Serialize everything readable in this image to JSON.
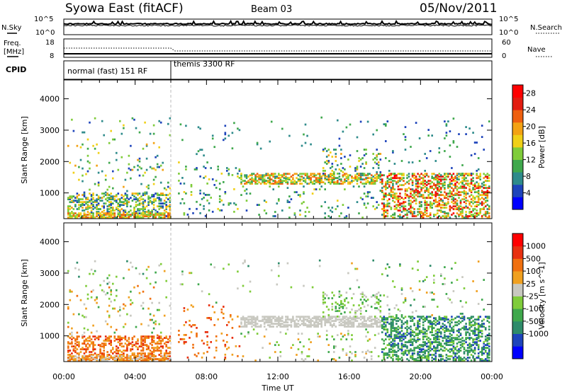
{
  "header": {
    "title": "Syowa East (fitACF)",
    "beam": "Beam 03",
    "date": "05/Nov/2011"
  },
  "noise_panel": {
    "left_label": "N.Sky",
    "right_label": "N.Search",
    "left_ticks": [
      "10^5",
      "10^0"
    ],
    "right_ticks": [
      "10^5",
      "10^0"
    ]
  },
  "freq_panel": {
    "left_label_1": "Freq.",
    "left_label_2": "[MHz]",
    "right_label": "Nave",
    "left_ticks": [
      "18",
      "8"
    ],
    "right_ticks": [
      "60",
      "0"
    ]
  },
  "cpid_panel": {
    "label": "CPID",
    "modes": [
      "normal (fast) 151 RF",
      "themis 3300 RF"
    ],
    "mode_switch_hour": 6.0
  },
  "time_axis": {
    "label": "Time UT",
    "tick_labels": [
      "00:00",
      "04:00",
      "08:00",
      "12:00",
      "16:00",
      "20:00",
      "00:00"
    ]
  },
  "chart_data": [
    {
      "type": "heatmap",
      "name": "power",
      "xlabel": "Time UT",
      "ylabel": "Slant Range [km]",
      "xlim_hours": [
        0,
        24
      ],
      "ylim_km": [
        180,
        4600
      ],
      "y_ticks": [
        1000,
        2000,
        3000,
        4000
      ],
      "colorbar": {
        "label": "Power [dB]",
        "ticks": [
          4,
          8,
          12,
          16,
          20,
          24,
          28
        ],
        "range": [
          0,
          30
        ],
        "colors": [
          "#0000ff",
          "#1e44bb",
          "#2e8b8b",
          "#3fa84c",
          "#7fcc3a",
          "#f0d018",
          "#f3a214",
          "#ee6010",
          "#e21c10",
          "#ff0000"
        ]
      },
      "bands": [
        {
          "t0": 0.2,
          "t1": 5.9,
          "r0": 200,
          "r1": 1000,
          "d": 0.42,
          "v": [
            4,
            20
          ]
        },
        {
          "t0": 0.2,
          "t1": 5.9,
          "r0": 1000,
          "r1": 2600,
          "d": 0.05,
          "v": [
            4,
            20
          ]
        },
        {
          "t0": 0.2,
          "t1": 5.9,
          "r0": 2600,
          "r1": 3400,
          "d": 0.025,
          "v": [
            4,
            16
          ]
        },
        {
          "t0": 0.2,
          "t1": 5.9,
          "r0": 200,
          "r1": 340,
          "d": 0.65,
          "v": [
            12,
            24
          ]
        },
        {
          "t0": 6.4,
          "t1": 9.8,
          "r0": 250,
          "r1": 2000,
          "d": 0.07,
          "v": [
            4,
            16
          ]
        },
        {
          "t0": 6.4,
          "t1": 9.8,
          "r0": 2000,
          "r1": 3300,
          "d": 0.02,
          "v": [
            4,
            12
          ]
        },
        {
          "t0": 9.9,
          "t1": 17.8,
          "r0": 1280,
          "r1": 1600,
          "d": 0.6,
          "v": [
            8,
            24
          ]
        },
        {
          "t0": 9.9,
          "t1": 17.8,
          "r0": 200,
          "r1": 1200,
          "d": 0.05,
          "v": [
            4,
            16
          ]
        },
        {
          "t0": 14.5,
          "t1": 17.8,
          "r0": 1600,
          "r1": 2400,
          "d": 0.15,
          "v": [
            4,
            20
          ]
        },
        {
          "t0": 17.8,
          "t1": 23.9,
          "r0": 200,
          "r1": 1600,
          "d": 0.45,
          "v": [
            8,
            28
          ]
        },
        {
          "t0": 17.8,
          "t1": 23.9,
          "r0": 1600,
          "r1": 3400,
          "d": 0.03,
          "v": [
            4,
            12
          ]
        },
        {
          "t0": 9.9,
          "t1": 17.8,
          "r0": 2400,
          "r1": 3400,
          "d": 0.015,
          "v": [
            4,
            12
          ]
        }
      ]
    },
    {
      "type": "heatmap",
      "name": "velocity",
      "xlabel": "Time UT",
      "ylabel": "Slant Range [km]",
      "xlim_hours": [
        0,
        24
      ],
      "ylim_km": [
        180,
        4600
      ],
      "y_ticks": [
        1000,
        2000,
        3000,
        4000
      ],
      "colorbar": {
        "label": "Velocity [m s^-1]",
        "ticks": [
          "1000",
          "500",
          "100",
          "25",
          "-25",
          "-100",
          "-500",
          "-1000"
        ],
        "colors": [
          "#0000ff",
          "#1e44bb",
          "#2e8b6a",
          "#3fa84c",
          "#7fcc3a",
          "#c8c8c0",
          "#f0a020",
          "#f07010",
          "#e83010",
          "#ff0000"
        ]
      },
      "bands": [
        {
          "t0": 0.2,
          "t1": 5.9,
          "r0": 200,
          "r1": 1000,
          "d": 0.42,
          "v": [
            6,
            8
          ]
        },
        {
          "t0": 0.2,
          "t1": 5.9,
          "r0": 1000,
          "r1": 2600,
          "d": 0.05,
          "v": [
            3,
            7
          ]
        },
        {
          "t0": 0.2,
          "t1": 5.9,
          "r0": 2600,
          "r1": 3400,
          "d": 0.025,
          "v": [
            2,
            6
          ]
        },
        {
          "t0": 0.2,
          "t1": 5.9,
          "r0": 200,
          "r1": 340,
          "d": 0.65,
          "v": [
            5,
            7
          ]
        },
        {
          "t0": 6.4,
          "t1": 9.8,
          "r0": 250,
          "r1": 2000,
          "d": 0.07,
          "v": [
            6,
            8
          ]
        },
        {
          "t0": 6.4,
          "t1": 9.8,
          "r0": 2000,
          "r1": 3300,
          "d": 0.02,
          "v": [
            3,
            6
          ]
        },
        {
          "t0": 9.9,
          "t1": 17.8,
          "r0": 1280,
          "r1": 1600,
          "d": 0.6,
          "v": [
            5,
            5
          ]
        },
        {
          "t0": 9.9,
          "t1": 17.8,
          "r0": 200,
          "r1": 1200,
          "d": 0.05,
          "v": [
            3,
            6
          ]
        },
        {
          "t0": 14.5,
          "t1": 17.8,
          "r0": 1600,
          "r1": 2400,
          "d": 0.15,
          "v": [
            3,
            5
          ]
        },
        {
          "t0": 17.8,
          "t1": 23.9,
          "r0": 200,
          "r1": 1600,
          "d": 0.45,
          "v": [
            1,
            4
          ]
        },
        {
          "t0": 17.8,
          "t1": 23.9,
          "r0": 1600,
          "r1": 3400,
          "d": 0.03,
          "v": [
            2,
            6
          ]
        },
        {
          "t0": 9.9,
          "t1": 17.8,
          "r0": 2400,
          "r1": 3400,
          "d": 0.015,
          "v": [
            2,
            6
          ]
        }
      ]
    }
  ]
}
